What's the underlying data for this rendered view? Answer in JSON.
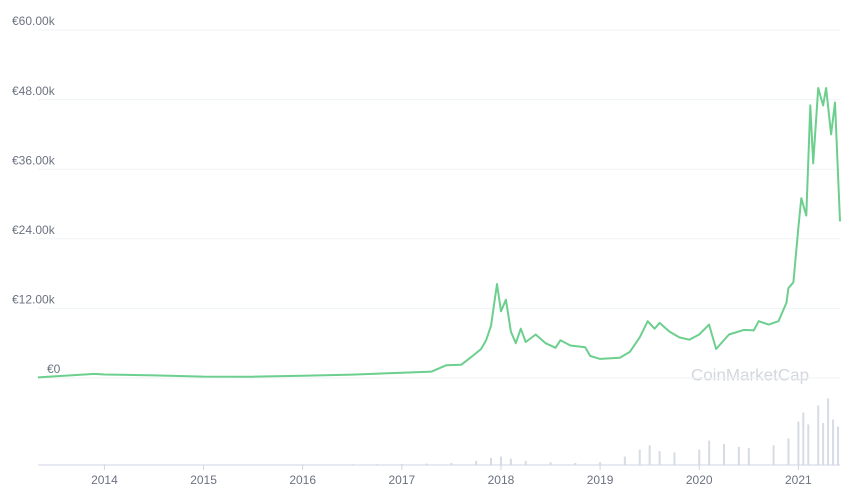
{
  "chart_data": {
    "type": "line",
    "color": "#6ccf8e",
    "x": [
      2013.33,
      2013.9,
      2014.0,
      2014.5,
      2015.0,
      2015.5,
      2016.0,
      2016.5,
      2017.0,
      2017.3,
      2017.45,
      2017.6,
      2017.7,
      2017.8,
      2017.85,
      2017.9,
      2017.96,
      2018.0,
      2018.05,
      2018.1,
      2018.15,
      2018.2,
      2018.25,
      2018.35,
      2018.45,
      2018.55,
      2018.6,
      2018.7,
      2018.85,
      2018.9,
      2019.0,
      2019.2,
      2019.3,
      2019.4,
      2019.48,
      2019.55,
      2019.6,
      2019.7,
      2019.8,
      2019.9,
      2020.0,
      2020.1,
      2020.17,
      2020.3,
      2020.45,
      2020.55,
      2020.6,
      2020.7,
      2020.8,
      2020.88,
      2020.9,
      2020.95,
      2021.0,
      2021.03,
      2021.08,
      2021.12,
      2021.15,
      2021.2,
      2021.25,
      2021.28,
      2021.33,
      2021.37,
      2021.42
    ],
    "values": [
      100,
      700,
      600,
      450,
      250,
      230,
      380,
      580,
      900,
      1100,
      2200,
      2300,
      3600,
      5000,
      6500,
      9000,
      16200,
      11500,
      13500,
      8000,
      6000,
      8500,
      6200,
      7500,
      6000,
      5200,
      6500,
      5600,
      5300,
      3800,
      3300,
      3500,
      4500,
      7000,
      9800,
      8500,
      9500,
      8000,
      7000,
      6600,
      7500,
      9200,
      5000,
      7500,
      8300,
      8200,
      9800,
      9200,
      9800,
      13000,
      15500,
      16500,
      26000,
      31000,
      28000,
      47000,
      37000,
      50000,
      47000,
      50000,
      42000,
      47500,
      27000
    ],
    "xlim": [
      2013.33,
      2021.42
    ],
    "xticks": [
      2014,
      2015,
      2016,
      2017,
      2018,
      2019,
      2020,
      2021
    ],
    "ylim": [
      0,
      60000
    ],
    "yticks": [
      {
        "value": 0,
        "label": "€0"
      },
      {
        "value": 12000,
        "label": "€12.00k"
      },
      {
        "value": 24000,
        "label": "€24.00k"
      },
      {
        "value": 36000,
        "label": "€36.00k"
      },
      {
        "value": 48000,
        "label": "€48.00k"
      },
      {
        "value": 60000,
        "label": "€60.00k"
      }
    ],
    "grid": true,
    "watermark": "CoinMarketCap",
    "volume": {
      "color": "#d6dbe4",
      "ylim": [
        0,
        100
      ],
      "x": [
        2013.5,
        2013.75,
        2014.0,
        2014.25,
        2014.5,
        2014.75,
        2015.0,
        2015.25,
        2015.5,
        2015.75,
        2016.0,
        2016.25,
        2016.5,
        2016.75,
        2017.0,
        2017.25,
        2017.5,
        2017.75,
        2017.9,
        2018.0,
        2018.1,
        2018.25,
        2018.5,
        2018.75,
        2019.0,
        2019.25,
        2019.4,
        2019.5,
        2019.6,
        2019.75,
        2020.0,
        2020.1,
        2020.25,
        2020.4,
        2020.5,
        2020.75,
        2020.9,
        2021.0,
        2021.05,
        2021.1,
        2021.2,
        2021.25,
        2021.3,
        2021.35,
        2021.4
      ],
      "values": [
        0.5,
        0.8,
        1,
        0.8,
        0.6,
        0.6,
        0.7,
        0.6,
        0.7,
        0.8,
        0.9,
        1,
        1.2,
        1.2,
        1.5,
        2,
        3,
        6,
        10,
        12,
        9,
        6,
        4,
        3,
        4,
        12,
        22,
        28,
        20,
        18,
        22,
        35,
        30,
        26,
        24,
        28,
        38,
        62,
        75,
        58,
        85,
        60,
        95,
        65,
        55
      ]
    }
  }
}
